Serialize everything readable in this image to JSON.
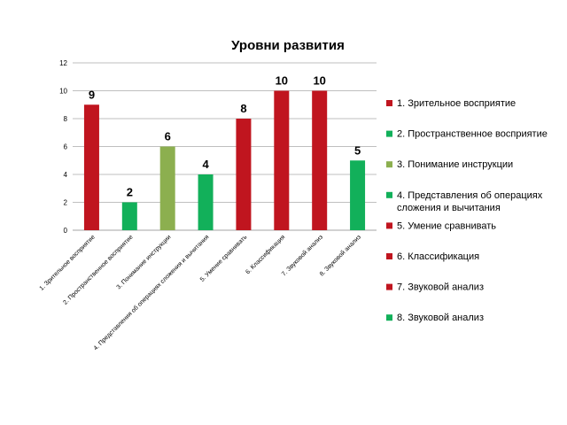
{
  "chart_data": {
    "type": "bar",
    "title": "Уровни развития",
    "xlabel": "",
    "ylabel": "",
    "ylim": [
      0,
      12
    ],
    "yticks": [
      0,
      2,
      4,
      6,
      8,
      10,
      12
    ],
    "grid": true,
    "legend_position": "right",
    "categories": [
      "1. Зрительное восприятие",
      "2. Пространственное восприятие",
      "3. Понимание инструкции",
      "4. Представления об операциях сложения и вычитания",
      "5. Умение сравнивать",
      "6. Классификация",
      "7. Звуковой анализ",
      "8. Звуковой анализ"
    ],
    "values": [
      9,
      2,
      6,
      4,
      8,
      10,
      10,
      5
    ],
    "colors": [
      "#c0151f",
      "#12b05a",
      "#8caf4f",
      "#12b05a",
      "#c0151f",
      "#c0151f",
      "#c0151f",
      "#12b05a"
    ],
    "legend": [
      {
        "label": "1. Зрительное восприятие",
        "color": "#c0151f"
      },
      {
        "label": "2. Пространственное восприятие",
        "color": "#12b05a"
      },
      {
        "label": "3. Понимание инструкции",
        "color": "#8caf4f"
      },
      {
        "label": "4. Представления об операциях сложения и вычитания",
        "lines": [
          "4. Представления об операциях",
          "сложения и вычитания"
        ],
        "color": "#12b05a"
      },
      {
        "label": "5. Умение сравнивать",
        "color": "#c0151f"
      },
      {
        "label": "6. Классификация",
        "color": "#c0151f"
      },
      {
        "label": "7. Звуковой анализ",
        "color": "#c0151f"
      },
      {
        "label": "8. Звуковой анализ",
        "color": "#12b05a"
      }
    ]
  }
}
